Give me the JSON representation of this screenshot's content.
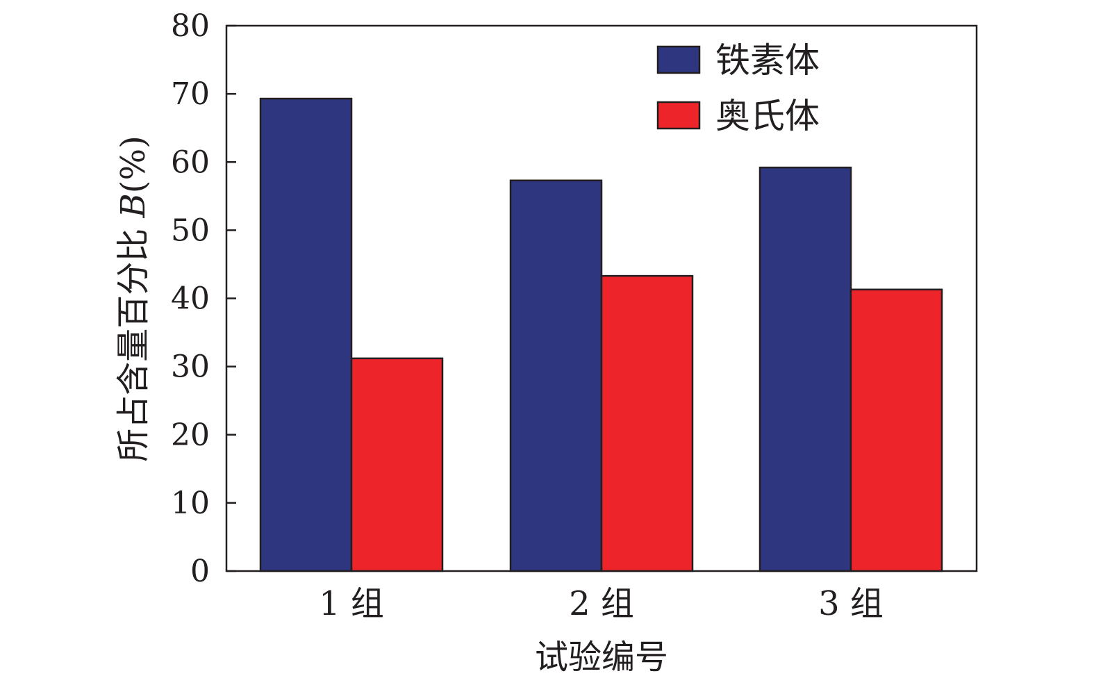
{
  "chart_data": {
    "type": "bar",
    "categories": [
      "1 组",
      "2 组",
      "3 组"
    ],
    "series": [
      {
        "name": "铁素体",
        "values": [
          69.3,
          57.3,
          59.2
        ],
        "color": "#2e3680"
      },
      {
        "name": "奥氏体",
        "values": [
          31.2,
          43.3,
          41.3
        ],
        "color": "#ee242b"
      }
    ],
    "title": "",
    "xlabel": "试验编号",
    "ylabel": {
      "prefix": "所占含量百分比 ",
      "var": "B",
      "suffix": "(%)"
    },
    "ylim": [
      0,
      80
    ],
    "yticks": [
      "0",
      "10",
      "20",
      "30",
      "40",
      "50",
      "60",
      "70",
      "80"
    ],
    "grid": false,
    "legend_position": "top-right"
  }
}
